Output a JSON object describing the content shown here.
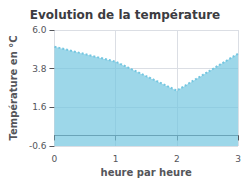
{
  "chart_data": {
    "type": "area",
    "title": "Evolution de la température",
    "x_label": "heure par heure",
    "y_label": "Température en °C",
    "x": [
      0,
      1,
      2,
      3
    ],
    "values": [
      5.05,
      4.2,
      2.55,
      4.65
    ],
    "color": "#74c6e0",
    "line_style": "dotted",
    "xlim": [
      0,
      3
    ],
    "xticks": [
      0,
      1,
      2,
      3
    ],
    "ylim": [
      -0.6,
      6.0
    ],
    "yticks": [
      -0.6,
      1.6,
      3.8,
      {
        "value": 6.0,
        "label": "6.0"
      }
    ],
    "grid": true
  }
}
